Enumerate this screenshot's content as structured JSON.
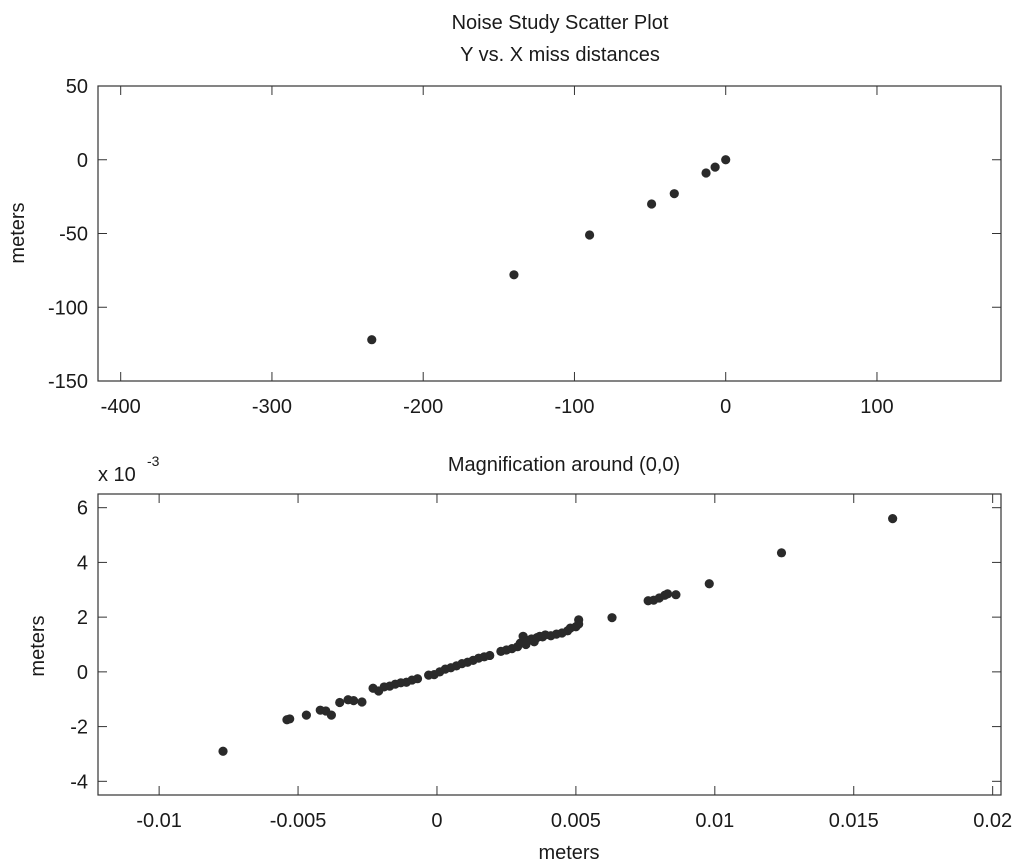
{
  "chart_data": [
    {
      "type": "scatter",
      "title": [
        "Noise Study Scatter Plot",
        "Y vs. X miss distances"
      ],
      "xlabel": "",
      "ylabel": "meters",
      "xlim": [
        -415,
        182
      ],
      "ylim": [
        -150,
        50
      ],
      "xticks": [
        -400,
        -300,
        -200,
        -100,
        0,
        100
      ],
      "xtick_labels": [
        "-400",
        "-300",
        "-200",
        "-100",
        "0",
        "100"
      ],
      "yticks": [
        50,
        0,
        -50,
        -100,
        -150
      ],
      "ytick_labels": [
        "50",
        "0",
        "-50",
        "-100",
        "-150"
      ],
      "grid": false,
      "points": [
        {
          "x": -234,
          "y": -122
        },
        {
          "x": -140,
          "y": -78
        },
        {
          "x": -90,
          "y": -51
        },
        {
          "x": -49,
          "y": -30
        },
        {
          "x": -34,
          "y": -23
        },
        {
          "x": -13,
          "y": -9
        },
        {
          "x": -7,
          "y": -5
        },
        {
          "x": 0,
          "y": 0
        }
      ]
    },
    {
      "type": "scatter",
      "title": "Magnification around (0,0)",
      "xlabel": "meters",
      "ylabel": "meters",
      "y_scale_label": "x 10",
      "y_scale_exponent": "-3",
      "xlim": [
        -0.0122,
        0.0203
      ],
      "ylim": [
        -4.5,
        6.5
      ],
      "xticks": [
        -0.01,
        -0.005,
        0,
        0.005,
        0.01,
        0.015,
        0.02
      ],
      "xtick_labels": [
        "-0.01",
        "-0.005",
        "0",
        "0.005",
        "0.01",
        "0.015",
        "0.02"
      ],
      "yticks": [
        6,
        4,
        2,
        0,
        -2,
        -4
      ],
      "ytick_labels": [
        "6",
        "4",
        "2",
        "0",
        "-2",
        "-4"
      ],
      "grid": false,
      "points": [
        {
          "x": -0.0077,
          "y": -2.9
        },
        {
          "x": -0.0054,
          "y": -1.75
        },
        {
          "x": -0.0053,
          "y": -1.72
        },
        {
          "x": -0.0047,
          "y": -1.58
        },
        {
          "x": -0.0042,
          "y": -1.4
        },
        {
          "x": -0.004,
          "y": -1.43
        },
        {
          "x": -0.0038,
          "y": -1.58
        },
        {
          "x": -0.0035,
          "y": -1.12
        },
        {
          "x": -0.0032,
          "y": -1.02
        },
        {
          "x": -0.003,
          "y": -1.05
        },
        {
          "x": -0.0027,
          "y": -1.1
        },
        {
          "x": -0.0023,
          "y": -0.6
        },
        {
          "x": -0.0021,
          "y": -0.7
        },
        {
          "x": -0.0019,
          "y": -0.55
        },
        {
          "x": -0.0017,
          "y": -0.52
        },
        {
          "x": -0.0015,
          "y": -0.45
        },
        {
          "x": -0.0013,
          "y": -0.4
        },
        {
          "x": -0.0011,
          "y": -0.38
        },
        {
          "x": -0.0009,
          "y": -0.3
        },
        {
          "x": -0.0007,
          "y": -0.25
        },
        {
          "x": -0.0003,
          "y": -0.12
        },
        {
          "x": -0.0001,
          "y": -0.1
        },
        {
          "x": 0.0001,
          "y": 0.0
        },
        {
          "x": 0.0003,
          "y": 0.1
        },
        {
          "x": 0.0005,
          "y": 0.15
        },
        {
          "x": 0.0007,
          "y": 0.22
        },
        {
          "x": 0.0009,
          "y": 0.3
        },
        {
          "x": 0.0011,
          "y": 0.35
        },
        {
          "x": 0.0013,
          "y": 0.42
        },
        {
          "x": 0.0015,
          "y": 0.5
        },
        {
          "x": 0.0017,
          "y": 0.55
        },
        {
          "x": 0.0019,
          "y": 0.6
        },
        {
          "x": 0.0023,
          "y": 0.75
        },
        {
          "x": 0.0025,
          "y": 0.8
        },
        {
          "x": 0.0027,
          "y": 0.85
        },
        {
          "x": 0.0029,
          "y": 0.92
        },
        {
          "x": 0.003,
          "y": 1.05
        },
        {
          "x": 0.0031,
          "y": 1.3
        },
        {
          "x": 0.0032,
          "y": 1.0
        },
        {
          "x": 0.0033,
          "y": 1.15
        },
        {
          "x": 0.0034,
          "y": 1.2
        },
        {
          "x": 0.0035,
          "y": 1.1
        },
        {
          "x": 0.0036,
          "y": 1.25
        },
        {
          "x": 0.0037,
          "y": 1.3
        },
        {
          "x": 0.0038,
          "y": 1.28
        },
        {
          "x": 0.0039,
          "y": 1.35
        },
        {
          "x": 0.0041,
          "y": 1.32
        },
        {
          "x": 0.0043,
          "y": 1.38
        },
        {
          "x": 0.0045,
          "y": 1.42
        },
        {
          "x": 0.0047,
          "y": 1.5
        },
        {
          "x": 0.0048,
          "y": 1.6
        },
        {
          "x": 0.005,
          "y": 1.65
        },
        {
          "x": 0.0051,
          "y": 1.75
        },
        {
          "x": 0.0051,
          "y": 1.9
        },
        {
          "x": 0.0063,
          "y": 1.98
        },
        {
          "x": 0.0076,
          "y": 2.6
        },
        {
          "x": 0.0078,
          "y": 2.62
        },
        {
          "x": 0.008,
          "y": 2.7
        },
        {
          "x": 0.0082,
          "y": 2.8
        },
        {
          "x": 0.0083,
          "y": 2.85
        },
        {
          "x": 0.0086,
          "y": 2.82
        },
        {
          "x": 0.0098,
          "y": 3.22
        },
        {
          "x": 0.0124,
          "y": 4.35
        },
        {
          "x": 0.0164,
          "y": 5.6
        }
      ]
    }
  ]
}
